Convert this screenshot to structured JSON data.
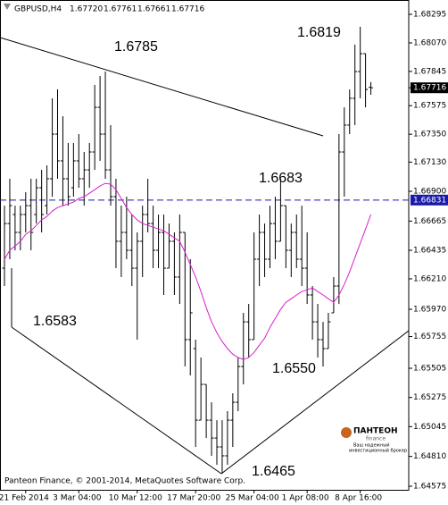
{
  "chart_data": {
    "type": "ohlc",
    "header": {
      "symbol": "GBPUSD,H4",
      "ohlc": [
        {
          "value": 1.6772,
          "label": "1.67720"
        },
        1.67761,
        1.67661,
        1.67716
      ]
    },
    "categories": [
      null,
      null,
      null,
      null,
      "21 Feb 2014",
      null,
      null,
      null,
      null,
      null,
      null,
      null,
      null,
      null,
      "3 Mar 04:00",
      null,
      null,
      null,
      null,
      null,
      null,
      null,
      null,
      null,
      null,
      "10 Mar 12:00",
      null,
      null,
      null,
      null,
      null,
      null,
      null,
      null,
      null,
      null,
      "17 Mar 20:00",
      null,
      null,
      null,
      null,
      null,
      null,
      null,
      null,
      null,
      null,
      "25 Mar 04:00",
      null,
      null,
      null,
      null,
      null,
      null,
      null,
      null,
      null,
      "1 Apr 08:00",
      null,
      null,
      null,
      null,
      null,
      null,
      null,
      null,
      null,
      "8 Apr 16:00",
      null,
      null
    ],
    "open": [
      1.66294,
      1.66646,
      1.66717,
      1.66576,
      1.66717,
      1.66787,
      1.66717,
      1.66928,
      1.66787,
      1.66999,
      1.67351,
      1.6714,
      1.66999,
      1.66928,
      1.6714,
      1.66999,
      1.67069,
      1.6721,
      1.67562,
      1.67351,
      1.67069,
      1.66858,
      1.66506,
      1.66576,
      1.66435,
      1.66294,
      1.66506,
      1.66717,
      1.66646,
      1.66435,
      1.66576,
      1.66294,
      1.66506,
      1.66224,
      1.66576,
      1.65731,
      1.6566,
      1.65096,
      1.65378,
      1.65096,
      1.64955,
      1.64885,
      1.64815,
      1.65096,
      1.65237,
      1.65519,
      1.65871,
      1.65731,
      1.66365,
      1.66576,
      1.66365,
      1.66646,
      1.66506,
      1.66787,
      1.66435,
      1.66576,
      1.66365,
      1.66294,
      1.66083,
      1.65871,
      1.65731,
      1.6566,
      1.65942,
      1.66153,
      1.6721,
      1.67422,
      1.67633,
      1.67844,
      1.67985,
      1.6772
    ],
    "high": [
      1.66787,
      1.66999,
      1.66787,
      1.66787,
      1.66893,
      1.66999,
      1.66999,
      1.67069,
      1.67104,
      1.67633,
      1.67703,
      1.67492,
      1.67281,
      1.67281,
      1.67351,
      1.6721,
      1.67281,
      1.67739,
      1.67809,
      1.67844,
      1.67422,
      1.66999,
      1.66787,
      1.66858,
      1.66717,
      1.66576,
      1.66787,
      1.66999,
      1.66787,
      1.66717,
      1.66717,
      1.66646,
      1.66576,
      1.66717,
      1.66576,
      1.66365,
      1.65731,
      1.6559,
      1.65378,
      1.65237,
      1.65096,
      1.65096,
      1.65167,
      1.65308,
      1.6559,
      1.65942,
      1.66012,
      1.66576,
      1.66717,
      1.66646,
      1.66787,
      1.66858,
      1.66999,
      1.66787,
      1.66646,
      1.66717,
      1.66787,
      1.66576,
      1.66153,
      1.66012,
      1.65871,
      1.65942,
      1.66224,
      1.67351,
      1.67562,
      1.67703,
      1.68056,
      1.68197,
      1.67985,
      1.67761
    ],
    "low": [
      1.66153,
      1.66365,
      1.66435,
      1.66435,
      1.66576,
      1.66435,
      1.66646,
      1.66576,
      1.66717,
      1.66858,
      1.66999,
      1.66787,
      1.66787,
      1.66858,
      1.66928,
      1.66787,
      1.66928,
      1.67069,
      1.6714,
      1.66999,
      1.66787,
      1.66294,
      1.66224,
      1.66365,
      1.66153,
      1.65731,
      1.66224,
      1.66576,
      1.66294,
      1.66294,
      1.66083,
      1.66294,
      1.66083,
      1.66012,
      1.65519,
      1.65449,
      1.64885,
      1.65096,
      1.64955,
      1.64815,
      1.64744,
      1.64674,
      1.64744,
      1.64885,
      1.65167,
      1.65378,
      1.6559,
      1.65731,
      1.66153,
      1.66224,
      1.66294,
      1.66365,
      1.66506,
      1.66294,
      1.66224,
      1.66294,
      1.66153,
      1.66012,
      1.65731,
      1.6559,
      1.65519,
      1.6566,
      1.65942,
      1.66012,
      1.66858,
      1.67351,
      1.67422,
      1.67633,
      1.67562,
      1.67661
    ],
    "close": [
      1.66646,
      1.66787,
      1.66576,
      1.66717,
      1.66787,
      1.66576,
      1.66928,
      1.66717,
      1.66999,
      1.67351,
      1.6714,
      1.66999,
      1.66858,
      1.6714,
      1.66999,
      1.67069,
      1.6721,
      1.67562,
      1.67351,
      1.67069,
      1.66858,
      1.66506,
      1.66576,
      1.66435,
      1.66294,
      1.66506,
      1.66717,
      1.66646,
      1.66435,
      1.66576,
      1.66294,
      1.66506,
      1.66224,
      1.66576,
      1.65731,
      1.65942,
      1.65096,
      1.65378,
      1.65096,
      1.64955,
      1.64885,
      1.64815,
      1.65096,
      1.65237,
      1.65519,
      1.65871,
      1.65731,
      1.66365,
      1.66576,
      1.66365,
      1.66646,
      1.66506,
      1.66787,
      1.66435,
      1.66576,
      1.66365,
      1.66294,
      1.66083,
      1.65871,
      1.65731,
      1.6566,
      1.65871,
      1.66153,
      1.6721,
      1.67422,
      1.67633,
      1.67844,
      1.67985,
      1.67703,
      1.67716
    ],
    "color": "#000000",
    "ma": {
      "color": "#d81ed0",
      "values": [
        1.66363,
        1.66435,
        1.66469,
        1.66506,
        1.66561,
        1.66589,
        1.66631,
        1.66674,
        1.66702,
        1.66744,
        1.66772,
        1.66787,
        1.66801,
        1.66815,
        1.66843,
        1.66858,
        1.66885,
        1.66913,
        1.66942,
        1.66963,
        1.66956,
        1.66913,
        1.66843,
        1.66772,
        1.66717,
        1.66674,
        1.66646,
        1.66631,
        1.66617,
        1.66603,
        1.66589,
        1.66561,
        1.66533,
        1.66506,
        1.6642,
        1.66321,
        1.66224,
        1.6611,
        1.65983,
        1.65871,
        1.65785,
        1.65715,
        1.6566,
        1.65616,
        1.6559,
        1.65574,
        1.6559,
        1.6563,
        1.65687,
        1.65743,
        1.65828,
        1.65898,
        1.65969,
        1.66025,
        1.66053,
        1.66083,
        1.6611,
        1.66124,
        1.66138,
        1.6611,
        1.66083,
        1.66053,
        1.66025,
        1.66083,
        1.66166,
        1.66265,
        1.66378,
        1.6649,
        1.66603,
        1.66717
      ]
    },
    "hline": {
      "value": 1.66831,
      "color": "#1a1aa8"
    },
    "last_price": 1.67716,
    "ylim": [
      1.64547,
      1.68408
    ],
    "yticks": [
      1.68295,
      {
        "value": 1.6807,
        "label": "1.68070"
      },
      1.67845,
      1.67575,
      {
        "value": 1.6735,
        "label": "1.67350"
      },
      {
        "value": 1.6713,
        "label": "1.67130"
      },
      {
        "value": 1.669,
        "label": "1.66900"
      },
      1.66665,
      1.66435,
      {
        "value": 1.6621,
        "label": "1.66210"
      },
      {
        "value": 1.6597,
        "label": "1.65970"
      },
      1.65755,
      1.65505,
      1.65275,
      1.65045,
      {
        "value": 1.6481,
        "label": "1.64810"
      },
      1.64575
    ],
    "annotations": [
      "1.6785",
      "1.6819",
      "1.6683",
      "1.6583",
      "1.6550",
      "1.6465"
    ],
    "watermark": "Panteon Finance, © 2001-2014, MetaQuotes Software Corp.",
    "logo": {
      "name": "ПАНТЕОН",
      "sub": "finance",
      "tagline": [
        "Ваш надежный",
        "инвестиционный брокер"
      ]
    }
  }
}
